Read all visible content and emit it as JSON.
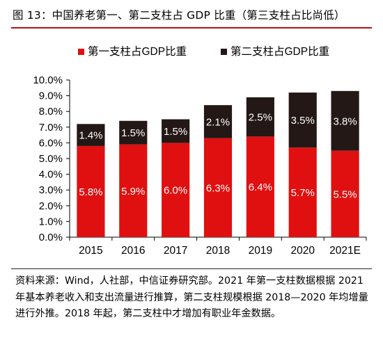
{
  "title": "图 13：中国养老第一、第二支柱占 GDP 比重（第三支柱占比尚低）",
  "source_note": "资料来源：Wind，人社部，中信证券研究部。2021 年第一支柱数据根据 2021 年基本养老收入和支出流量进行推算，第二支柱规模根据 2018—2020 年均增量进行外推。2018 年起，第二支柱中才增加有职业年金数据。",
  "chart_data": {
    "type": "bar",
    "stacked": true,
    "categories": [
      "2015",
      "2016",
      "2017",
      "2018",
      "2019",
      "2020",
      "2021E"
    ],
    "series": [
      {
        "name": "第一支柱占GDP比重",
        "values": [
          5.8,
          5.9,
          6.0,
          6.3,
          6.4,
          5.7,
          5.5
        ],
        "labels": [
          "5.8%",
          "5.9%",
          "6.0%",
          "6.3%",
          "6.4%",
          "5.7%",
          "5.5%"
        ],
        "color": "#e01010",
        "label_color": "#ffffff"
      },
      {
        "name": "第二支柱占GDP比重",
        "values": [
          1.4,
          1.5,
          1.5,
          2.1,
          2.5,
          3.5,
          3.8
        ],
        "labels": [
          "1.4%",
          "1.5%",
          "1.5%",
          "2.1%",
          "2.5%",
          "3.5%",
          "3.8%"
        ],
        "color": "#231815",
        "label_color": "#ffffff"
      }
    ],
    "ylim": [
      0,
      10
    ],
    "ytick_step": 1,
    "ytick_labels": [
      "0.0%",
      "1.0%",
      "2.0%",
      "3.0%",
      "4.0%",
      "5.0%",
      "6.0%",
      "7.0%",
      "8.0%",
      "9.0%",
      "10.0%"
    ],
    "legend_position": "top",
    "grid": false
  }
}
